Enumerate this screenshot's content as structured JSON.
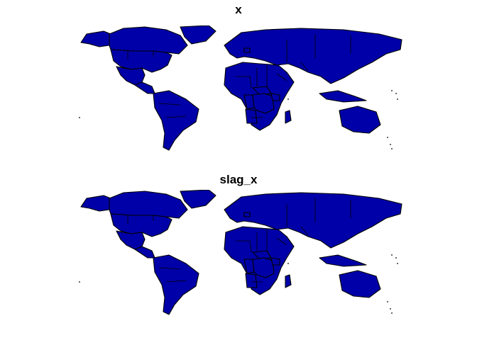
{
  "panels": [
    {
      "title": "x",
      "colors": {
        "base": "#0000a8",
        "usa": "#ffff33",
        "alaska": "#ffff33",
        "canada": "#0000a8",
        "mexico": "#0000a8",
        "belgium": "#ffff33",
        "drc": "#ffff33",
        "congo": "#0000a8",
        "angola": "#0000a8",
        "cafr": "#0000a8",
        "uganda": "#0000a8"
      }
    },
    {
      "title": "slag_x",
      "colors": {
        "base": "#0000a8",
        "usa": "#0000a8",
        "alaska": "#0000a8",
        "canada": "#ffff33",
        "mexico": "#f0627a",
        "belgium": "#0000a8",
        "drc": "#7a23c7",
        "congo": "#f0627a",
        "angola": "#f0627a",
        "cafr": "#c12db5",
        "uganda": "#c12db5"
      }
    }
  ]
}
